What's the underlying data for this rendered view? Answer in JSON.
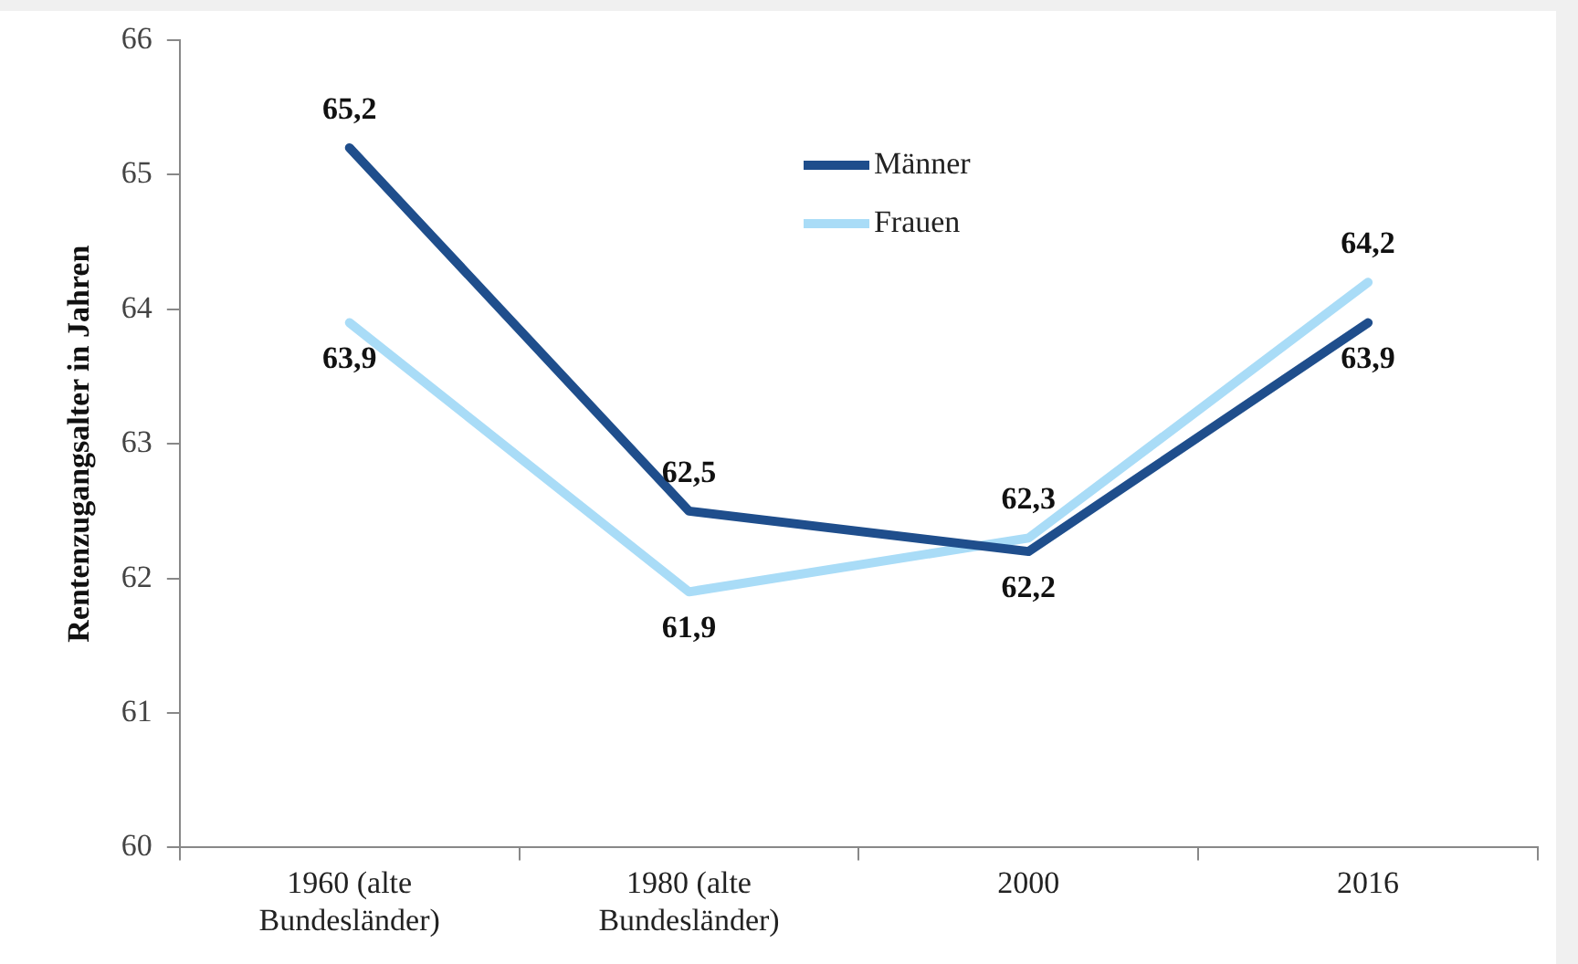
{
  "chart_data": {
    "type": "line",
    "ylabel": "Rentenzugangsalter in Jahren",
    "categories": [
      "1960 (alte Bundesländer)",
      "1980 (alte Bundesländer)",
      "2000",
      "2016"
    ],
    "series": [
      {
        "name": "Männer",
        "color": "#1f4e8c",
        "values": [
          65.2,
          62.5,
          62.2,
          63.9
        ],
        "value_labels": [
          "65,2",
          "62,5",
          "62,2",
          "63,9"
        ]
      },
      {
        "name": "Frauen",
        "color": "#a9dcf7",
        "values": [
          63.9,
          61.9,
          62.3,
          64.2
        ],
        "value_labels": [
          "63,9",
          "61,9",
          "62,3",
          "64,2"
        ]
      }
    ],
    "ylim": [
      60,
      66
    ],
    "yticks": [
      60,
      61,
      62,
      63,
      64,
      65,
      66
    ],
    "grid": false,
    "legend": "top",
    "marker": "none",
    "line_style": "solid"
  }
}
